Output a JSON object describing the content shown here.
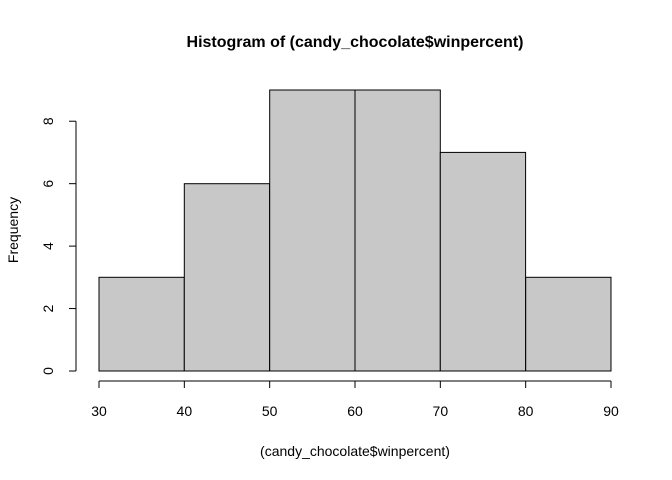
{
  "chart_data": {
    "type": "bar",
    "title": "Histogram of (candy_chocolate$winpercent)",
    "xlabel": "(candy_chocolate$winpercent)",
    "ylabel": "Frequency",
    "bins": [
      {
        "from": 30,
        "to": 40,
        "count": 3
      },
      {
        "from": 40,
        "to": 50,
        "count": 6
      },
      {
        "from": 50,
        "to": 60,
        "count": 9
      },
      {
        "from": 60,
        "to": 70,
        "count": 9
      },
      {
        "from": 70,
        "to": 80,
        "count": 7
      },
      {
        "from": 80,
        "to": 90,
        "count": 3
      }
    ],
    "xlim": [
      30,
      90
    ],
    "ylim": [
      0,
      9
    ],
    "x_ticks": [
      30,
      40,
      50,
      60,
      70,
      80,
      90
    ],
    "y_ticks": [
      0,
      2,
      4,
      6,
      8
    ],
    "bar_fill": "#c8c8c8",
    "grid": false
  }
}
